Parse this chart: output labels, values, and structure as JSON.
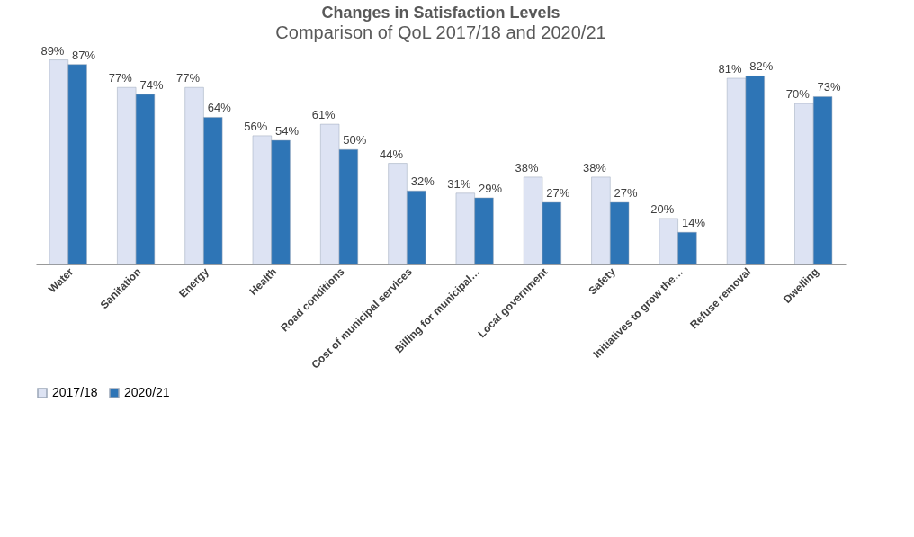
{
  "chart_data": {
    "type": "bar",
    "title": "Changes in Satisfaction Levels",
    "subtitle": "Comparison of QoL 2017/18 and 2020/21",
    "categories": [
      "Water",
      "Sanitation",
      "Energy",
      "Health",
      "Road conditions",
      "Cost of municipal services",
      "Billing for municipal…",
      "Local government",
      "Safety",
      "Initiatives to grow the…",
      "Refuse removal",
      "Dwelling"
    ],
    "series": [
      {
        "name": "2017/18",
        "color": "#dde3f3",
        "values": [
          89,
          77,
          77,
          56,
          61,
          44,
          31,
          38,
          38,
          20,
          81,
          70
        ],
        "value_labels": [
          "89%",
          "77%",
          "77%",
          "56%",
          "61%",
          "44%",
          "31%",
          "38%",
          "38%",
          "20%",
          "81%",
          "70%"
        ]
      },
      {
        "name": "2020/21",
        "color": "#2e75b6",
        "values": [
          87,
          74,
          64,
          54,
          50,
          32,
          29,
          27,
          27,
          14,
          82,
          73
        ],
        "value_labels": [
          "87%",
          "74%",
          "64%",
          "54%",
          "50%",
          "32%",
          "29%",
          "27%",
          "27%",
          "14%",
          "82%",
          "73%"
        ]
      }
    ],
    "legend": "bottom",
    "grid": false
  }
}
